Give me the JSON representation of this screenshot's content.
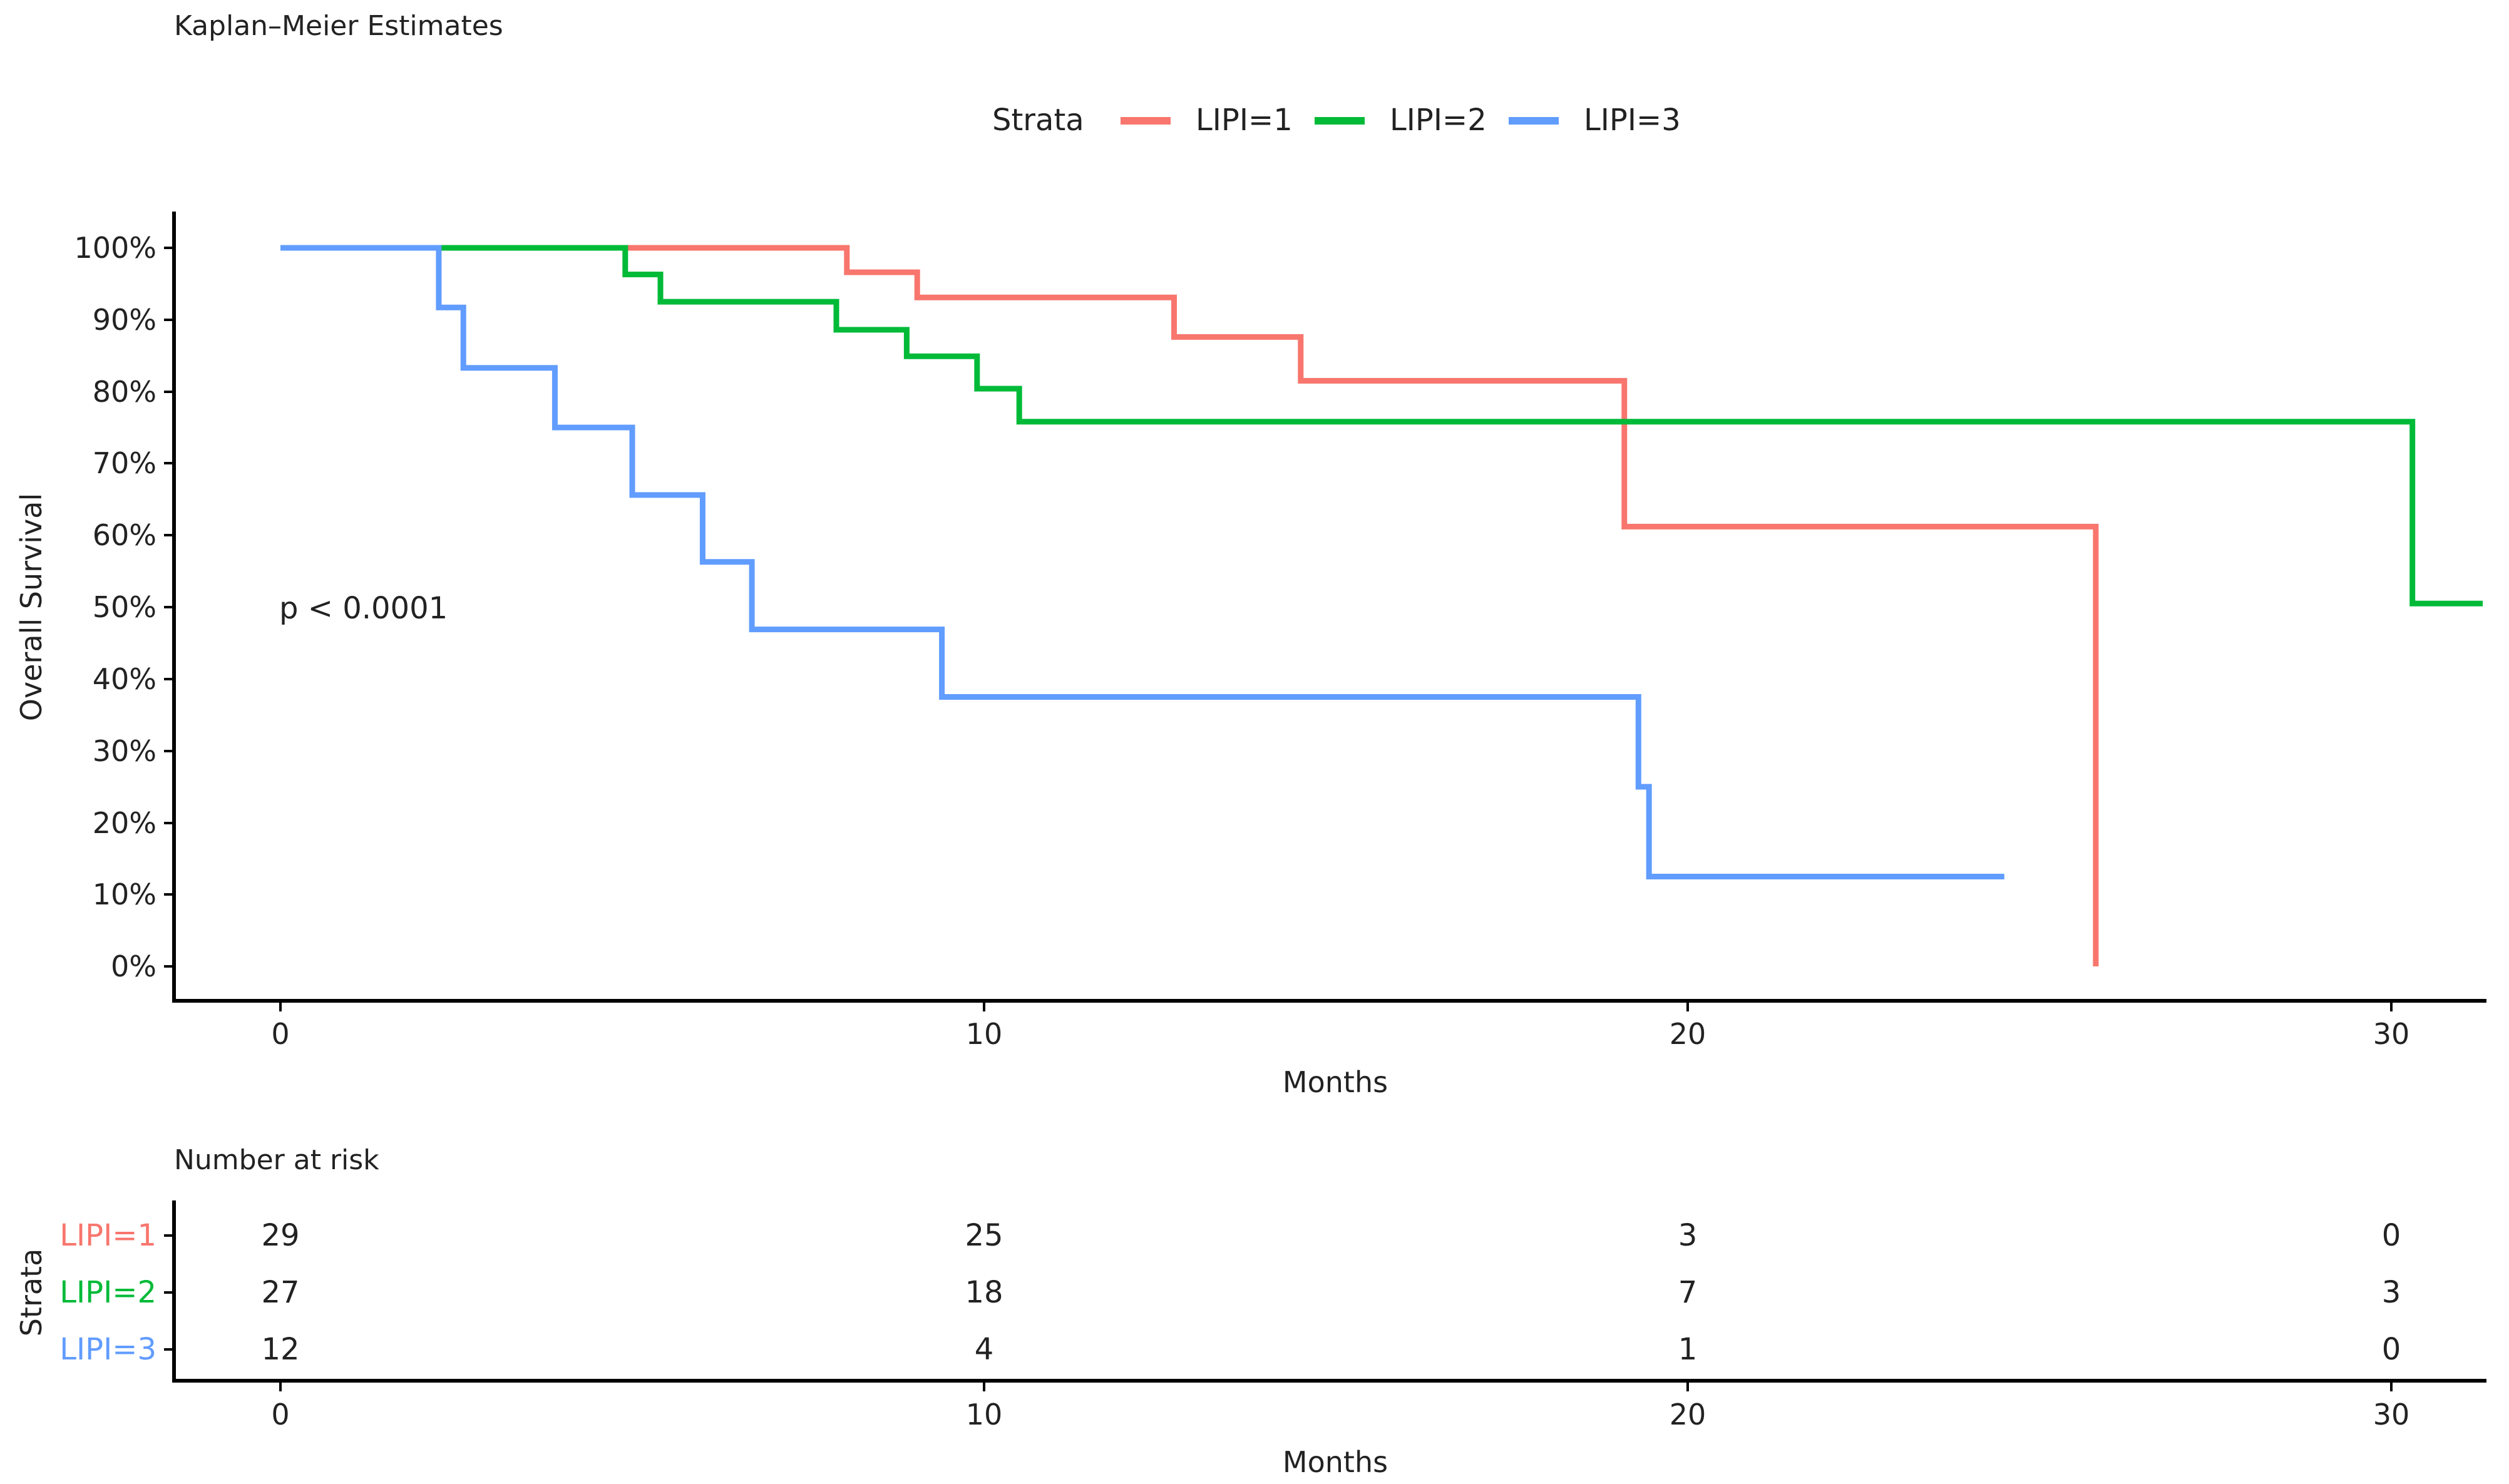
{
  "chart_data": [
    {
      "type": "line",
      "subtype": "kaplan-meier-step",
      "title": "Kaplan–Meier Estimates",
      "xlabel": "Months",
      "ylabel": "Overall Survival",
      "xlim": [
        -1.5,
        31.5
      ],
      "ylim": [
        -0.05,
        1.05
      ],
      "x_ticks": [
        0,
        10,
        20,
        30
      ],
      "x_tick_labels": [
        "0",
        "10",
        "20",
        "30"
      ],
      "y_ticks": [
        0,
        0.1,
        0.2,
        0.3,
        0.4,
        0.5,
        0.6,
        0.7,
        0.8,
        0.9,
        1.0
      ],
      "y_tick_labels": [
        "0%",
        "10%",
        "20%",
        "30%",
        "40%",
        "50%",
        "60%",
        "70%",
        "80%",
        "90%",
        "100%"
      ],
      "legend": {
        "title": "Strata",
        "position": "top"
      },
      "annotation": "p < 0.0001",
      "grid": false,
      "series": [
        {
          "name": "LIPI=1",
          "color": "#F8766D",
          "x": [
            0,
            8.05,
            9.05,
            12.7,
            14.5,
            19.1,
            25.8,
            25.8
          ],
          "y": [
            1.0,
            0.966,
            0.931,
            0.876,
            0.815,
            0.612,
            0.0,
            0.0
          ]
        },
        {
          "name": "LIPI=2",
          "color": "#00BA38",
          "x": [
            0,
            4.9,
            5.4,
            7.9,
            8.9,
            9.9,
            10.5,
            30.3,
            31.3
          ],
          "y": [
            1.0,
            0.963,
            0.925,
            0.886,
            0.849,
            0.804,
            0.758,
            0.505,
            0.505
          ]
        },
        {
          "name": "LIPI=3",
          "color": "#619CFF",
          "x": [
            0,
            2.25,
            2.6,
            3.9,
            5.0,
            6.0,
            6.7,
            9.4,
            19.3,
            19.45,
            24.5
          ],
          "y": [
            1.0,
            0.917,
            0.833,
            0.75,
            0.656,
            0.563,
            0.469,
            0.375,
            0.25,
            0.125,
            0.125
          ]
        }
      ]
    },
    {
      "type": "table",
      "title": "Number at risk",
      "xlabel": "Months",
      "ylabel": "Strata",
      "x_ticks": [
        0,
        10,
        20,
        30
      ],
      "x_tick_labels": [
        "0",
        "10",
        "20",
        "30"
      ],
      "columns": [
        0,
        10,
        20,
        30
      ],
      "rows": [
        {
          "label": "LIPI=1",
          "color": "#F8766D",
          "values": [
            "29",
            "25",
            "3",
            "0"
          ]
        },
        {
          "label": "LIPI=2",
          "color": "#00BA38",
          "values": [
            "27",
            "18",
            "7",
            "3"
          ]
        },
        {
          "label": "LIPI=3",
          "color": "#619CFF",
          "values": [
            "12",
            "4",
            "1",
            "0"
          ]
        }
      ]
    }
  ]
}
